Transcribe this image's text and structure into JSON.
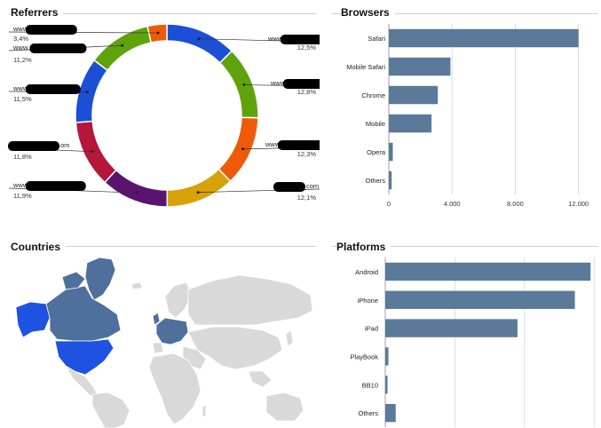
{
  "panels": {
    "referrers": {
      "title": "Referrers"
    },
    "browsers": {
      "title": "Browsers"
    },
    "countries": {
      "title": "Countries"
    },
    "platforms": {
      "title": "Platforms"
    }
  },
  "colors": {
    "bar": "#5b7a99",
    "map_land": "#d9d9d9",
    "map_highlight_bright": "#1e52e0",
    "map_highlight_steel": "#4f6f9c",
    "grid": "#d4d4d4"
  },
  "chart_data": [
    {
      "type": "pie",
      "id": "referrers",
      "title": "Referrers",
      "labels_visible": [
        "www.",
        "www.",
        "www.",
        "www.",
        "www.",
        "www.",
        ".com",
        "www.",
        ".com"
      ],
      "slices": [
        {
          "label_prefix": "www",
          "label_suffix": "",
          "value": 12.5,
          "value_text": "12,5%",
          "color": "#1a4fd6"
        },
        {
          "label_prefix": "www",
          "label_suffix": "",
          "value": 12.8,
          "value_text": "12,8%",
          "color": "#5ea30c"
        },
        {
          "label_prefix": "www",
          "label_suffix": "",
          "value": 12.3,
          "value_text": "12,3%",
          "color": "#ee5a0a"
        },
        {
          "label_prefix": "",
          "label_suffix": "com",
          "value": 12.1,
          "value_text": "12,1%",
          "color": "#d7a207"
        },
        {
          "label_prefix": "www",
          "label_suffix": "",
          "value": 11.9,
          "value_text": "11,9%",
          "color": "#5a1470"
        },
        {
          "label_prefix": "",
          "label_suffix": "om",
          "value": 11.8,
          "value_text": "11,8%",
          "color": "#b5163a"
        },
        {
          "label_prefix": "www",
          "label_suffix": "",
          "value": 11.5,
          "value_text": "11,5%",
          "color": "#1a4fd6"
        },
        {
          "label_prefix": "www.",
          "label_suffix": "",
          "value": 11.2,
          "value_text": "11,2%",
          "color": "#5ea30c"
        },
        {
          "label_prefix": "www",
          "label_suffix": "",
          "value": 3.4,
          "value_text": "3,4%",
          "color": "#ee5a0a"
        }
      ]
    },
    {
      "type": "bar",
      "id": "browsers",
      "title": "Browsers",
      "orientation": "horizontal",
      "categories": [
        "Safari",
        "Mobile Safari",
        "Chrome",
        "Mobile",
        "Opera",
        "Others"
      ],
      "values": [
        12000,
        3900,
        3100,
        2700,
        250,
        180
      ],
      "xlim": [
        0,
        13200
      ],
      "ticks": [
        0,
        4000,
        8000,
        12000
      ],
      "tick_labels": [
        "0",
        "4.000",
        "8.000",
        "12.000"
      ],
      "grid": true
    },
    {
      "type": "bar",
      "id": "platforms",
      "title": "Platforms",
      "orientation": "horizontal",
      "categories": [
        "Android",
        "iPhone",
        "iPad",
        "PlayBook",
        "BB10",
        "Others"
      ],
      "values": [
        11800,
        10900,
        7600,
        180,
        130,
        600
      ],
      "xlim": [
        0,
        12400
      ],
      "ticks": [
        0,
        4000,
        8000,
        12000
      ],
      "grid": true
    }
  ]
}
